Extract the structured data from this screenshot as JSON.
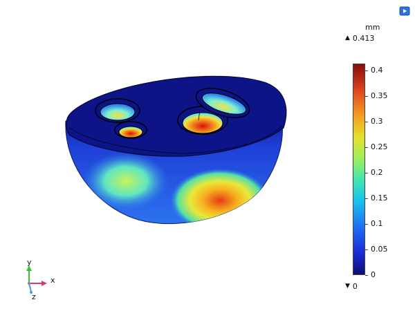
{
  "toolbar": {
    "icon": "render-icon",
    "accent": "#2d6fe0"
  },
  "legend": {
    "unit": "mm",
    "max_label": "0.413",
    "min_label": "0",
    "max_marker": "▲",
    "min_marker": "▼",
    "ticks": [
      "0.4",
      "0.35",
      "0.3",
      "0.25",
      "0.2",
      "0.15",
      "0.1",
      "0.05",
      "0"
    ],
    "tick_values": [
      0.4,
      0.35,
      0.3,
      0.25,
      0.2,
      0.15,
      0.1,
      0.05,
      0
    ],
    "range": [
      0,
      0.413
    ],
    "colormap": "rainbow"
  },
  "axes": {
    "x": "x",
    "y": "y",
    "z": "z"
  }
}
